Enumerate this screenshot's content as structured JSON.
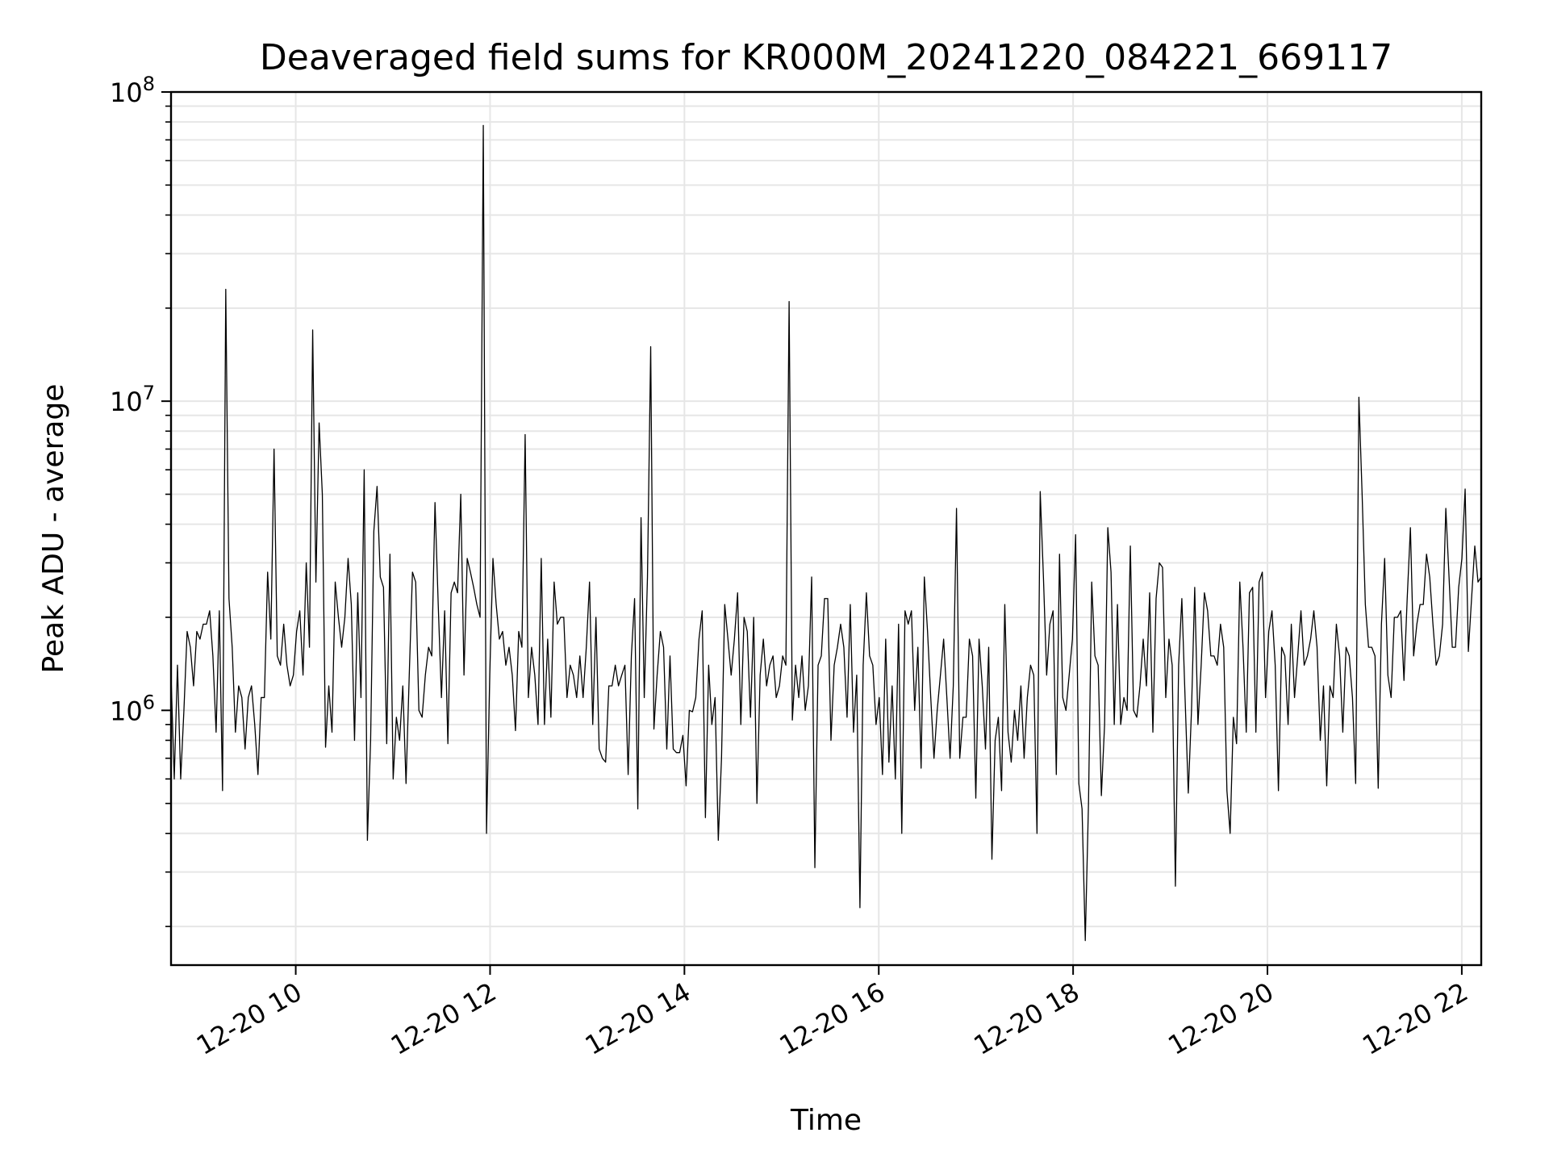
{
  "chart_data": {
    "type": "line",
    "title": "Deaveraged field sums for KR000M_20241220_084221_669117",
    "xlabel": "Time",
    "ylabel": "Peak ADU - average",
    "yscale": "log",
    "ylim": [
      150000,
      100000000
    ],
    "xlim": [
      "2024-12-20 08:43",
      "2024-12-20 22:12"
    ],
    "grid": true,
    "line_color": "#000000",
    "x_ticks": [
      {
        "t": "2024-12-20 10:00",
        "label": "12-20 10"
      },
      {
        "t": "2024-12-20 12:00",
        "label": "12-20 12"
      },
      {
        "t": "2024-12-20 14:00",
        "label": "12-20 14"
      },
      {
        "t": "2024-12-20 16:00",
        "label": "12-20 16"
      },
      {
        "t": "2024-12-20 18:00",
        "label": "12-20 18"
      },
      {
        "t": "2024-12-20 20:00",
        "label": "12-20 20"
      },
      {
        "t": "2024-12-20 22:00",
        "label": "12-20 22"
      }
    ],
    "y_ticks": [
      {
        "value": 1000000,
        "base": "10",
        "exp": "6"
      },
      {
        "value": 10000000,
        "base": "10",
        "exp": "7"
      },
      {
        "value": 100000000,
        "base": "10",
        "exp": "8"
      }
    ],
    "series": [
      {
        "x_start": "2024-12-20 08:43",
        "x_end": "2024-12-20 22:12",
        "values": [
          1300000,
          600000,
          1400000,
          600000,
          1000000,
          1800000,
          1600000,
          1200000,
          1800000,
          1700000,
          1900000,
          1900000,
          2100000,
          1500000,
          850000,
          2100000,
          550000,
          23000000,
          2300000,
          1600000,
          850000,
          1200000,
          1100000,
          750000,
          1100000,
          1200000,
          900000,
          620000,
          1100000,
          1100000,
          2800000,
          1700000,
          7000000,
          1500000,
          1400000,
          1900000,
          1400000,
          1200000,
          1300000,
          1800000,
          2100000,
          1300000,
          3000000,
          1600000,
          17000000,
          2600000,
          8500000,
          5000000,
          760000,
          1200000,
          850000,
          2600000,
          2000000,
          1600000,
          2000000,
          3100000,
          2200000,
          800000,
          2400000,
          1100000,
          6000000,
          380000,
          800000,
          3800000,
          5300000,
          2700000,
          2500000,
          780000,
          3200000,
          600000,
          950000,
          800000,
          1200000,
          580000,
          1300000,
          2800000,
          2600000,
          1000000,
          950000,
          1300000,
          1600000,
          1500000,
          4700000,
          2200000,
          1100000,
          2100000,
          780000,
          2400000,
          2600000,
          2400000,
          5000000,
          1300000,
          3100000,
          2800000,
          2500000,
          2200000,
          2000000,
          78000000,
          400000,
          1300000,
          3100000,
          2200000,
          1700000,
          1800000,
          1400000,
          1600000,
          1300000,
          860000,
          1800000,
          1600000,
          7800000,
          1100000,
          1600000,
          1300000,
          900000,
          3100000,
          900000,
          1700000,
          950000,
          2600000,
          1900000,
          2000000,
          2000000,
          1100000,
          1400000,
          1300000,
          1100000,
          1500000,
          1100000,
          1600000,
          2600000,
          900000,
          2000000,
          750000,
          700000,
          680000,
          1200000,
          1200000,
          1400000,
          1200000,
          1300000,
          1400000,
          620000,
          1500000,
          2300000,
          480000,
          4200000,
          1100000,
          2700000,
          15000000,
          870000,
          1300000,
          1800000,
          1600000,
          750000,
          1500000,
          750000,
          730000,
          730000,
          830000,
          570000,
          1000000,
          990000,
          1100000,
          1700000,
          2100000,
          450000,
          1400000,
          900000,
          1100000,
          380000,
          700000,
          2200000,
          1700000,
          1300000,
          1700000,
          2400000,
          900000,
          2000000,
          1800000,
          950000,
          2000000,
          500000,
          1300000,
          1700000,
          1200000,
          1400000,
          1500000,
          1100000,
          1200000,
          1500000,
          1400000,
          21000000,
          930000,
          1400000,
          1100000,
          1500000,
          1000000,
          1200000,
          2700000,
          310000,
          1400000,
          1500000,
          2300000,
          2300000,
          800000,
          1400000,
          1600000,
          1900000,
          1600000,
          950000,
          2200000,
          850000,
          1300000,
          230000,
          1400000,
          2400000,
          1500000,
          1400000,
          900000,
          1100000,
          620000,
          1700000,
          680000,
          1200000,
          600000,
          1900000,
          400000,
          2100000,
          1900000,
          2100000,
          1000000,
          1600000,
          650000,
          2700000,
          1800000,
          1100000,
          700000,
          1000000,
          1300000,
          1700000,
          1100000,
          700000,
          1200000,
          4500000,
          700000,
          950000,
          950000,
          1700000,
          1500000,
          520000,
          1700000,
          1200000,
          750000,
          1600000,
          330000,
          800000,
          950000,
          550000,
          2200000,
          850000,
          680000,
          1000000,
          800000,
          1200000,
          700000,
          1100000,
          1400000,
          1300000,
          400000,
          5100000,
          2700000,
          1300000,
          1900000,
          2100000,
          620000,
          3200000,
          1100000,
          1000000,
          1300000,
          1700000,
          3700000,
          580000,
          480000,
          180000,
          500000,
          2600000,
          1500000,
          1400000,
          530000,
          900000,
          3900000,
          2800000,
          900000,
          2200000,
          900000,
          1100000,
          1000000,
          3400000,
          1000000,
          950000,
          1200000,
          1700000,
          1200000,
          2400000,
          850000,
          2300000,
          3000000,
          2900000,
          1100000,
          1700000,
          1400000,
          270000,
          1400000,
          2300000,
          1100000,
          540000,
          1000000,
          2500000,
          900000,
          1400000,
          2400000,
          2100000,
          1500000,
          1500000,
          1400000,
          1900000,
          1600000,
          550000,
          400000,
          950000,
          780000,
          2600000,
          1600000,
          850000,
          2400000,
          2500000,
          850000,
          2600000,
          2800000,
          1100000,
          1800000,
          2100000,
          1400000,
          550000,
          1600000,
          1500000,
          900000,
          1900000,
          1100000,
          1500000,
          2100000,
          1400000,
          1500000,
          1700000,
          2100000,
          1600000,
          800000,
          1200000,
          570000,
          1200000,
          1100000,
          1900000,
          1500000,
          850000,
          1600000,
          1500000,
          1100000,
          580000,
          10300000,
          5000000,
          2200000,
          1600000,
          1600000,
          1500000,
          560000,
          1900000,
          3100000,
          1300000,
          1100000,
          2000000,
          2000000,
          2100000,
          1250000,
          2300000,
          3900000,
          1500000,
          1900000,
          2200000,
          2200000,
          3200000,
          2700000,
          1900000,
          1400000,
          1500000,
          1900000,
          4500000,
          2700000,
          1600000,
          1600000,
          2500000,
          3100000,
          5200000,
          1550000,
          2300000,
          3400000,
          2600000,
          2700000
        ]
      }
    ]
  }
}
